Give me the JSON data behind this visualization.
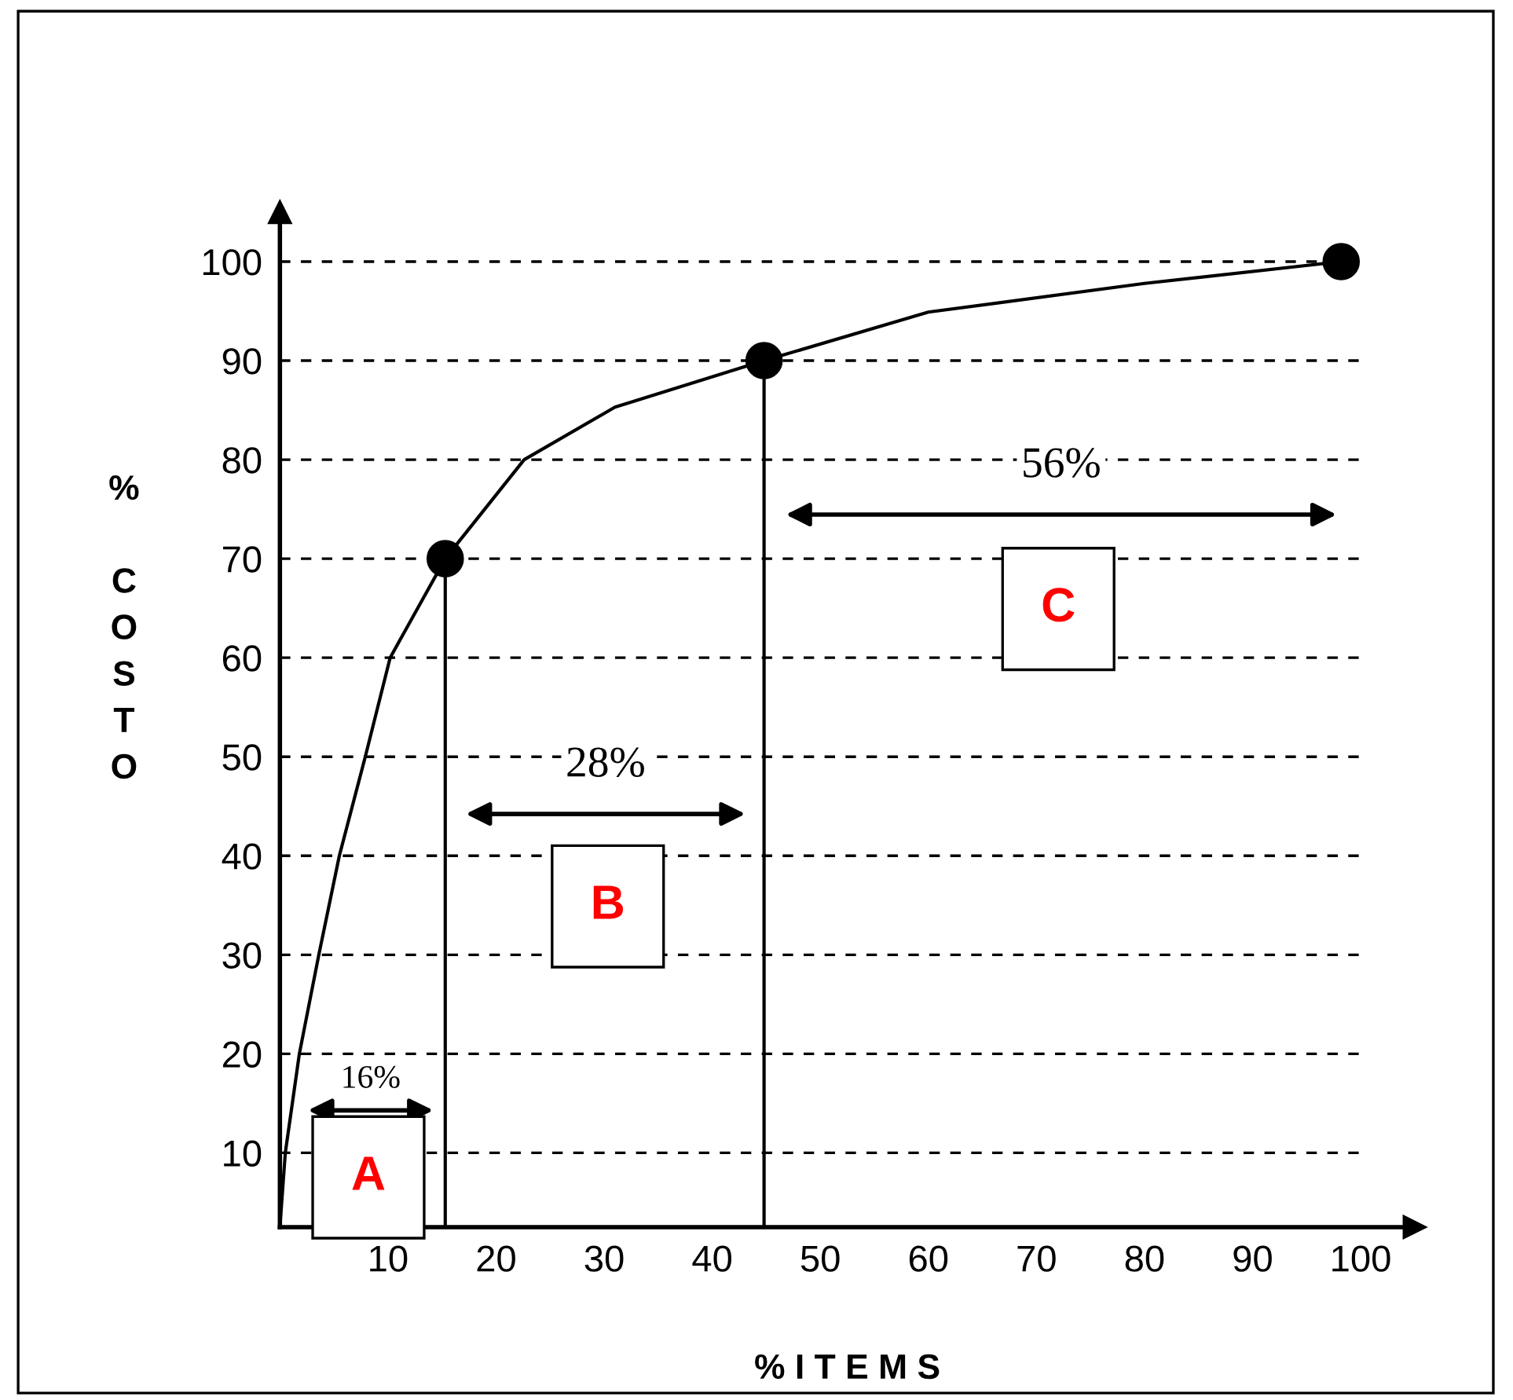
{
  "chart_data": {
    "type": "line",
    "xlabel": "% I T E M S",
    "ylabel": "% COSTO",
    "xlim": [
      0,
      105
    ],
    "ylim": [
      2.5,
      105
    ],
    "xticks": [
      10,
      20,
      30,
      40,
      50,
      60,
      70,
      80,
      90,
      100
    ],
    "yticks": [
      10,
      20,
      30,
      40,
      50,
      60,
      70,
      80,
      90,
      100
    ],
    "grid": "y",
    "series": [
      {
        "color": "#000000",
        "marker": "none",
        "x": [
          0,
          0.5,
          1.8,
          3.6,
          5.5,
          7.9,
          10.2,
          15.3,
          22.6,
          31,
          44.8,
          60,
          80,
          98.2
        ],
        "values": [
          2.5,
          10,
          20,
          30,
          40,
          50,
          60,
          70,
          80,
          85.3,
          90,
          94.9,
          97.8,
          100
        ]
      },
      {
        "type": "scatter",
        "color": "#000000",
        "marker": "circle",
        "x": [
          15.3,
          44.8,
          98.2
        ],
        "values": [
          70,
          90,
          100
        ]
      },
      {
        "color": "#000000",
        "marker": "none",
        "x": [
          15.3,
          15.3
        ],
        "values": [
          2.5,
          70
        ]
      },
      {
        "color": "#000000",
        "marker": "none",
        "x": [
          44.8,
          44.8
        ],
        "values": [
          2.5,
          90
        ]
      }
    ],
    "annotations": [
      "16%",
      "28%",
      "56%",
      "A",
      "B",
      "C"
    ]
  }
}
